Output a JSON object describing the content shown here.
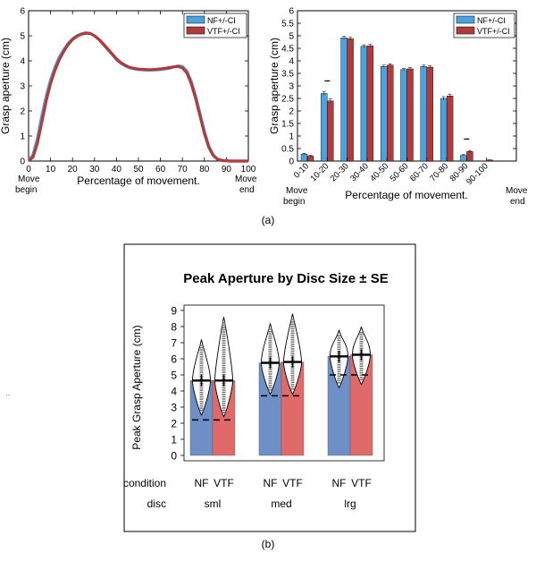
{
  "panel_a_label": "(a)",
  "panel_b_label": "(b)",
  "stray_mark": "..",
  "colors": {
    "nf": "#4aa3df",
    "vtf": "#b33a3a",
    "box_nf": "#6f8fc7",
    "box_vtf": "#e06a6a"
  },
  "chart_data": [
    {
      "id": "a_left",
      "type": "line",
      "title": "",
      "xlabel": "Percentage of movement.",
      "ylabel": "Grasp aperture (cm)",
      "xlim": [
        0,
        100
      ],
      "ylim": [
        0,
        6
      ],
      "xticks": [
        "0",
        "10",
        "20",
        "30",
        "40",
        "50",
        "60",
        "70",
        "80",
        "90",
        "100"
      ],
      "yticks": [
        "0",
        "1",
        "2",
        "3",
        "4",
        "5",
        "6"
      ],
      "x_start_label": [
        "Move",
        "begin"
      ],
      "x_end_label": [
        "Move",
        "end"
      ],
      "legend": [
        "NF+/-CI",
        "VTF+/-CI"
      ],
      "legend_placement": "top-right",
      "series": [
        {
          "name": "NF+/-CI",
          "x": [
            0,
            2,
            4,
            6,
            8,
            10,
            12,
            14,
            16,
            18,
            20,
            22,
            24,
            26,
            28,
            30,
            32,
            34,
            36,
            38,
            40,
            42,
            44,
            46,
            48,
            50,
            52,
            54,
            56,
            58,
            60,
            62,
            64,
            66,
            68,
            70,
            72,
            74,
            76,
            78,
            80,
            82,
            84,
            86,
            88,
            90,
            92,
            94,
            96,
            100
          ],
          "values": [
            0.02,
            0.25,
            0.9,
            1.8,
            2.6,
            3.25,
            3.75,
            4.15,
            4.45,
            4.7,
            4.88,
            5.0,
            5.08,
            5.12,
            5.1,
            5.0,
            4.85,
            4.65,
            4.45,
            4.25,
            4.05,
            3.9,
            3.8,
            3.72,
            3.68,
            3.65,
            3.64,
            3.63,
            3.63,
            3.64,
            3.65,
            3.67,
            3.7,
            3.75,
            3.8,
            3.78,
            3.6,
            3.2,
            2.6,
            1.9,
            1.2,
            0.6,
            0.25,
            0.08,
            0.03,
            0.01,
            0.0,
            0.0,
            0.0,
            0.0
          ]
        },
        {
          "name": "VTF+/-CI",
          "x": [
            0,
            2,
            4,
            6,
            8,
            10,
            12,
            14,
            16,
            18,
            20,
            22,
            24,
            26,
            28,
            30,
            32,
            34,
            36,
            38,
            40,
            42,
            44,
            46,
            48,
            50,
            52,
            54,
            56,
            58,
            60,
            62,
            64,
            66,
            68,
            70,
            72,
            74,
            76,
            78,
            80,
            82,
            84,
            86,
            88,
            90,
            92,
            94,
            96,
            100
          ],
          "values": [
            0.01,
            0.15,
            0.7,
            1.55,
            2.4,
            3.1,
            3.62,
            4.05,
            4.38,
            4.65,
            4.85,
            4.98,
            5.06,
            5.1,
            5.09,
            5.0,
            4.86,
            4.68,
            4.48,
            4.28,
            4.08,
            3.93,
            3.82,
            3.74,
            3.7,
            3.67,
            3.66,
            3.65,
            3.65,
            3.66,
            3.68,
            3.7,
            3.73,
            3.76,
            3.78,
            3.72,
            3.52,
            3.1,
            2.5,
            1.8,
            1.1,
            0.55,
            0.22,
            0.07,
            0.02,
            0.01,
            0.0,
            0.0,
            0.0,
            0.0
          ]
        }
      ]
    },
    {
      "id": "a_right",
      "type": "bar",
      "title": "",
      "xlabel": "Percentage of movement.",
      "ylabel": "Grasp aperture (cm)",
      "ylim": [
        0,
        6
      ],
      "yticks": [
        "0",
        "0.5",
        "1",
        "1.5",
        "2",
        "2.5",
        "3",
        "3.5",
        "4",
        "4.5",
        "5",
        "5.5",
        "6"
      ],
      "categories": [
        "0-10",
        "10-20",
        "20-30",
        "30-40",
        "40-50",
        "50-60",
        "60-70",
        "70-80",
        "80-90",
        "90-100"
      ],
      "x_start_label": [
        "Move",
        "begin"
      ],
      "x_end_label": [
        "Move",
        "end"
      ],
      "legend": [
        "NF+/-CI",
        "VTF+/-CI"
      ],
      "legend_placement": "top-right",
      "significance_marks": [
        "10-20",
        "80-90"
      ],
      "series": [
        {
          "name": "NF+/-CI",
          "values": [
            0.28,
            2.7,
            4.92,
            4.58,
            3.78,
            3.65,
            3.78,
            2.5,
            0.23,
            0.0
          ]
        },
        {
          "name": "VTF+/-CI",
          "values": [
            0.2,
            2.4,
            4.88,
            4.6,
            3.83,
            3.68,
            3.75,
            2.6,
            0.38,
            0.04
          ]
        }
      ],
      "errors": [
        [
          0.03,
          0.08,
          0.06,
          0.06,
          0.05,
          0.05,
          0.05,
          0.07,
          0.03,
          0.0
        ],
        [
          0.03,
          0.08,
          0.06,
          0.06,
          0.05,
          0.05,
          0.05,
          0.07,
          0.04,
          0.01
        ]
      ]
    },
    {
      "id": "b",
      "type": "bar",
      "title": "Peak Aperture by Disc Size ± SE",
      "ylabel": "Peak Grasp Aperture (cm)",
      "ylim": [
        0,
        9
      ],
      "yticks": [
        "0",
        "1",
        "2",
        "3",
        "4",
        "5",
        "6",
        "7",
        "8",
        "9"
      ],
      "row_labels": {
        "condition": "condition",
        "disc": "disc"
      },
      "conditions": [
        "NF",
        "VTF",
        "NF",
        "VTF",
        "NF",
        "VTF"
      ],
      "discs": [
        "sml",
        "med",
        "lrg"
      ],
      "series": [
        {
          "name": "NF",
          "values": [
            4.65,
            5.75,
            6.15
          ]
        },
        {
          "name": "VTF",
          "values": [
            4.65,
            5.8,
            6.25
          ]
        }
      ],
      "reference_dashed": [
        2.2,
        3.7,
        5.0
      ],
      "violin_range": [
        [
          2.5,
          7.2
        ],
        [
          2.4,
          8.6
        ],
        [
          3.8,
          8.2
        ],
        [
          3.8,
          8.8
        ],
        [
          4.2,
          7.8
        ],
        [
          4.4,
          8.0
        ]
      ]
    }
  ]
}
